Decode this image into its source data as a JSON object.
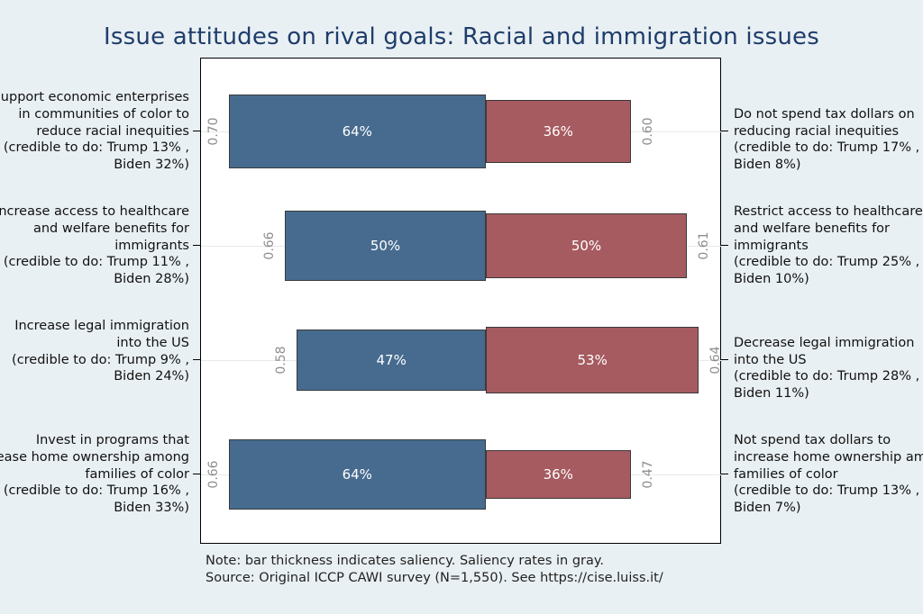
{
  "chart_data": {
    "type": "bar",
    "orientation": "horizontal-diverging-stacked",
    "title": "Issue attitudes on rival goals: Racial and immigration issues",
    "colors": {
      "left": "#466b8f",
      "right": "#a65b60"
    },
    "xlim": [
      0,
      100
    ],
    "rows": [
      {
        "left_label": "Support economic enterprises\nin communities of color to\nreduce racial inequities\n(credible to do: Trump 13% ,\nBiden 32%)",
        "right_label": "Do not spend tax dollars on\nreducing racial inequities\n(credible to do: Trump 17% ,\nBiden 8%)",
        "left_value": 64,
        "right_value": 36,
        "left_value_label": "64%",
        "right_value_label": "36%",
        "left_saliency": 0.7,
        "right_saliency": 0.6,
        "left_saliency_label": "0.70",
        "right_saliency_label": "0.60"
      },
      {
        "left_label": "Increase access to healthcare\nand welfare benefits for\nimmigrants\n(credible to do: Trump 11% ,\nBiden 28%)",
        "right_label": "Restrict access to healthcare\nand welfare benefits for\nimmigrants\n(credible to do: Trump 25% ,\nBiden 10%)",
        "left_value": 50,
        "right_value": 50,
        "left_value_label": "50%",
        "right_value_label": "50%",
        "left_saliency": 0.66,
        "right_saliency": 0.61,
        "left_saliency_label": "0.66",
        "right_saliency_label": "0.61"
      },
      {
        "left_label": "Increase legal immigration\ninto the US\n(credible to do: Trump 9% ,\nBiden 24%)",
        "right_label": "Decrease legal immigration\ninto the US\n(credible to do: Trump 28% ,\nBiden 11%)",
        "left_value": 47,
        "right_value": 53,
        "left_value_label": "47%",
        "right_value_label": "53%",
        "left_saliency": 0.58,
        "right_saliency": 0.64,
        "left_saliency_label": "0.58",
        "right_saliency_label": "0.64"
      },
      {
        "left_label": "Invest in programs that\nrease home ownership among\nfamilies of color\n(credible to do: Trump 16% ,\nBiden 33%)",
        "right_label": "Not spend tax dollars to\nincrease home ownership amon\nfamilies of color\n(credible to do: Trump 13% ,\nBiden 7%)",
        "left_value": 64,
        "right_value": 36,
        "left_value_label": "64%",
        "right_value_label": "36%",
        "left_saliency": 0.66,
        "right_saliency": 0.47,
        "left_saliency_label": "0.66",
        "right_saliency_label": "0.47"
      }
    ],
    "notes": [
      "Note: bar thickness indicates saliency. Saliency rates in gray.",
      "Source: Original ICCP CAWI survey (N=1,550). See https://cise.luiss.it/"
    ]
  }
}
